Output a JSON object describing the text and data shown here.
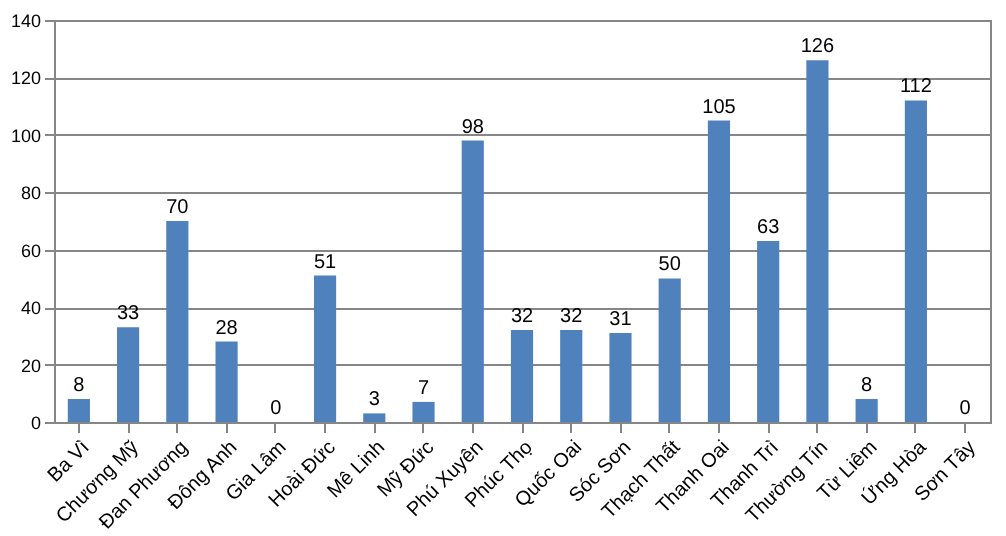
{
  "chart_data": {
    "type": "bar",
    "categories": [
      "Ba Vì",
      "Chương Mỹ",
      "Đan Phương",
      "Đông Anh",
      "Gia Lâm",
      "Hoài Đức",
      "Mê Linh",
      "Mỹ Đức",
      "Phú Xuyên",
      "Phúc Thọ",
      "Quốc Oai",
      "Sóc Sơn",
      "Thạch Thất",
      "Thanh Oai",
      "Thanh Trì",
      "Thường Tín",
      "Từ Liêm",
      "Ứng Hòa",
      "Sơn Tây"
    ],
    "values": [
      8,
      33,
      70,
      28,
      0,
      51,
      3,
      7,
      98,
      32,
      32,
      31,
      50,
      105,
      63,
      126,
      8,
      112,
      0
    ],
    "color": "#4f81bd",
    "ylim": [
      0,
      140
    ],
    "yticks": [
      0,
      20,
      40,
      60,
      80,
      100,
      120,
      140
    ],
    "grid": "y",
    "data_labels": true
  }
}
